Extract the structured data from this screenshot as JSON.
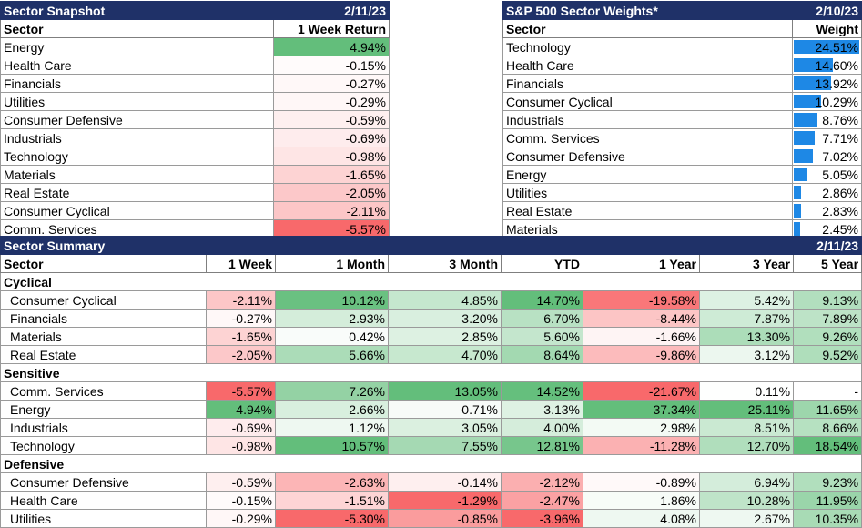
{
  "snapshot": {
    "title": "Sector Snapshot",
    "date": "2/11/23",
    "col_sector": "Sector",
    "col_return": "1 Week Return",
    "rows": [
      {
        "sector": "Energy",
        "value": "4.94%",
        "num": 4.94
      },
      {
        "sector": "Health Care",
        "value": "-0.15%",
        "num": -0.15
      },
      {
        "sector": "Financials",
        "value": "-0.27%",
        "num": -0.27
      },
      {
        "sector": "Utilities",
        "value": "-0.29%",
        "num": -0.29
      },
      {
        "sector": "Consumer Defensive",
        "value": "-0.59%",
        "num": -0.59
      },
      {
        "sector": "Industrials",
        "value": "-0.69%",
        "num": -0.69
      },
      {
        "sector": "Technology",
        "value": "-0.98%",
        "num": -0.98
      },
      {
        "sector": "Materials",
        "value": "-1.65%",
        "num": -1.65
      },
      {
        "sector": "Real Estate",
        "value": "-2.05%",
        "num": -2.05
      },
      {
        "sector": "Consumer Cyclical",
        "value": "-2.11%",
        "num": -2.11
      },
      {
        "sector": "Comm. Services",
        "value": "-5.57%",
        "num": -5.57
      }
    ]
  },
  "weights": {
    "title": "S&P 500 Sector Weights*",
    "date": "2/10/23",
    "col_sector": "Sector",
    "col_weight": "Weight",
    "bar_color": "#1e88e5",
    "rows": [
      {
        "sector": "Technology",
        "value": "24.51%",
        "num": 24.51
      },
      {
        "sector": "Health Care",
        "value": "14.60%",
        "num": 14.6
      },
      {
        "sector": "Financials",
        "value": "13.92%",
        "num": 13.92
      },
      {
        "sector": "Consumer Cyclical",
        "value": "10.29%",
        "num": 10.29
      },
      {
        "sector": "Industrials",
        "value": "8.76%",
        "num": 8.76
      },
      {
        "sector": "Comm. Services",
        "value": "7.71%",
        "num": 7.71
      },
      {
        "sector": "Consumer Defensive",
        "value": "7.02%",
        "num": 7.02
      },
      {
        "sector": "Energy",
        "value": "5.05%",
        "num": 5.05
      },
      {
        "sector": "Utilities",
        "value": "2.86%",
        "num": 2.86
      },
      {
        "sector": "Real Estate",
        "value": "2.83%",
        "num": 2.83
      },
      {
        "sector": "Materials",
        "value": "2.45%",
        "num": 2.45
      }
    ]
  },
  "summary": {
    "title": "Sector Summary",
    "date": "2/11/23",
    "columns": [
      "Sector",
      "1 Week",
      "1 Month",
      "3 Month",
      "YTD",
      "1 Year",
      "3 Year",
      "5 Year"
    ],
    "groups": [
      {
        "name": "Cyclical",
        "rows": [
          {
            "sector": "Consumer Cyclical",
            "values": [
              "-2.11%",
              "10.12%",
              "4.85%",
              "14.70%",
              "-19.58%",
              "5.42%",
              "9.13%"
            ]
          },
          {
            "sector": "Financials",
            "values": [
              "-0.27%",
              "2.93%",
              "3.20%",
              "6.70%",
              "-8.44%",
              "7.87%",
              "7.89%"
            ]
          },
          {
            "sector": "Materials",
            "values": [
              "-1.65%",
              "0.42%",
              "2.85%",
              "5.60%",
              "-1.66%",
              "13.30%",
              "9.26%"
            ]
          },
          {
            "sector": "Real Estate",
            "values": [
              "-2.05%",
              "5.66%",
              "4.70%",
              "8.64%",
              "-9.86%",
              "3.12%",
              "9.52%"
            ]
          }
        ]
      },
      {
        "name": "Sensitive",
        "rows": [
          {
            "sector": "Comm. Services",
            "values": [
              "-5.57%",
              "7.26%",
              "13.05%",
              "14.52%",
              "-21.67%",
              "0.11%",
              "-"
            ]
          },
          {
            "sector": "Energy",
            "values": [
              "4.94%",
              "2.66%",
              "0.71%",
              "3.13%",
              "37.34%",
              "25.11%",
              "11.65%"
            ]
          },
          {
            "sector": "Industrials",
            "values": [
              "-0.69%",
              "1.12%",
              "3.05%",
              "4.00%",
              "2.98%",
              "8.51%",
              "8.66%"
            ]
          },
          {
            "sector": "Technology",
            "values": [
              "-0.98%",
              "10.57%",
              "7.55%",
              "12.81%",
              "-11.28%",
              "12.70%",
              "18.54%"
            ]
          }
        ]
      },
      {
        "name": "Defensive",
        "rows": [
          {
            "sector": "Consumer Defensive",
            "values": [
              "-0.59%",
              "-2.63%",
              "-0.14%",
              "-2.12%",
              "-0.89%",
              "6.94%",
              "9.23%"
            ]
          },
          {
            "sector": "Health Care",
            "values": [
              "-0.15%",
              "-1.51%",
              "-1.29%",
              "-2.47%",
              "1.86%",
              "10.28%",
              "11.95%"
            ]
          },
          {
            "sector": "Utilities",
            "values": [
              "-0.29%",
              "-5.30%",
              "-0.85%",
              "-3.96%",
              "4.08%",
              "2.67%",
              "10.35%"
            ]
          }
        ]
      }
    ]
  }
}
